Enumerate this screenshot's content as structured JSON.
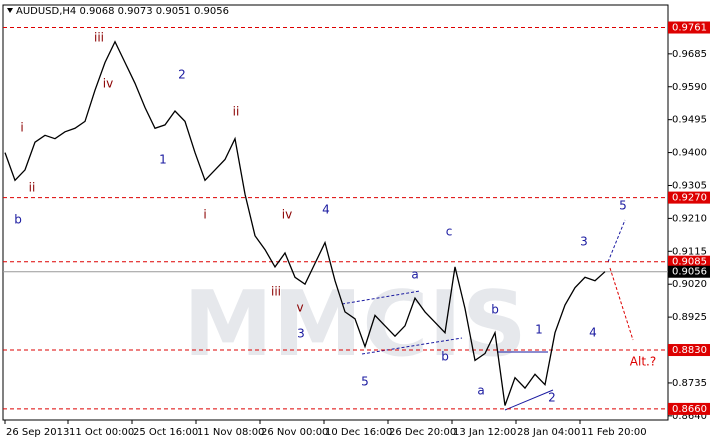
{
  "chart_data": {
    "type": "line",
    "title": "AUDUSD,H4  0.9068 0.9073 0.9051 0.9056",
    "watermark": "MMCIS",
    "series": [
      {
        "name": "AUDUSD",
        "color": "#000000",
        "values": [
          0.94,
          0.932,
          0.935,
          0.943,
          0.945,
          0.944,
          0.946,
          0.947,
          0.949,
          0.958,
          0.966,
          0.972,
          0.966,
          0.96,
          0.953,
          0.947,
          0.948,
          0.952,
          0.949,
          0.94,
          0.932,
          0.935,
          0.938,
          0.944,
          0.928,
          0.916,
          0.912,
          0.907,
          0.911,
          0.904,
          0.902,
          0.908,
          0.914,
          0.903,
          0.894,
          0.892,
          0.884,
          0.893,
          0.89,
          0.887,
          0.89,
          0.898,
          0.894,
          0.891,
          0.888,
          0.907,
          0.895,
          0.88,
          0.882,
          0.888,
          0.867,
          0.875,
          0.872,
          0.876,
          0.873,
          0.888,
          0.896,
          0.901,
          0.904,
          0.903,
          0.9056
        ]
      }
    ],
    "xlim": [
      -0.2,
      66.3
    ],
    "xticks": [
      {
        "value": 0,
        "label": "26 Sep 2013"
      },
      {
        "value": 6.3,
        "label": "11 Oct 00:00"
      },
      {
        "value": 12.7,
        "label": "25 Oct 16:00"
      },
      {
        "value": 19.1,
        "label": "11 Nov 08:00"
      },
      {
        "value": 25.5,
        "label": "26 Nov 00:00"
      },
      {
        "value": 31.9,
        "label": "10 Dec 16:00"
      },
      {
        "value": 38.3,
        "label": "26 Dec 20:00"
      },
      {
        "value": 44.7,
        "label": "13 Jan 12:00"
      },
      {
        "value": 51.1,
        "label": "28 Jan 04:00"
      },
      {
        "value": 57.5,
        "label": "11 Feb 20:00"
      }
    ],
    "ylim": [
      0.8628,
      0.9826
    ],
    "yticks": [
      0.9685,
      {
        "value": 0.959,
        "label": "0.9590"
      },
      0.9495,
      {
        "value": 0.94,
        "label": "0.9400"
      },
      0.9305,
      {
        "value": 0.921,
        "label": "0.9210"
      },
      0.9115,
      {
        "value": 0.902,
        "label": "0.9020"
      },
      0.8925,
      0.8735,
      {
        "value": 0.864,
        "label": "0.8640"
      }
    ],
    "levels": [
      {
        "value": 0.9761,
        "label": "0.9761"
      },
      {
        "value": 0.927,
        "label": "0.9270"
      },
      {
        "value": 0.9085,
        "label": "0.9085"
      },
      {
        "value": 0.883,
        "label": "0.8830"
      },
      {
        "value": 0.866,
        "label": "0.8660"
      }
    ],
    "level_color": "#dd0000",
    "current_price": {
      "value": 0.9056,
      "label": "0.9056"
    },
    "annotations": [
      {
        "text": "b",
        "color": "#1a1aa0"
      },
      {
        "text": "i",
        "color": "#8b0000"
      },
      {
        "text": "ii",
        "color": "#8b0000"
      },
      {
        "text": "iii",
        "color": "#8b0000"
      },
      {
        "text": "iv",
        "color": "#8b0000"
      },
      {
        "text": "2",
        "color": "#1a1aa0"
      },
      {
        "text": "1",
        "color": "#1a1aa0"
      },
      {
        "text": "ii",
        "color": "#8b0000"
      },
      {
        "text": "i",
        "color": "#8b0000"
      },
      {
        "text": "iv",
        "color": "#8b0000"
      },
      {
        "text": "4",
        "color": "#1a1aa0"
      },
      {
        "text": "iii",
        "color": "#8b0000"
      },
      {
        "text": "v",
        "color": "#8b0000"
      },
      {
        "text": "3",
        "color": "#1a1aa0"
      },
      {
        "text": "5",
        "color": "#1a1aa0"
      },
      {
        "text": "a",
        "color": "#1a1aa0"
      },
      {
        "text": "b",
        "color": "#1a1aa0"
      },
      {
        "text": "c",
        "color": "#1a1aa0"
      },
      {
        "text": "b",
        "color": "#1a1aa0"
      },
      {
        "text": "a",
        "color": "#1a1aa0"
      },
      {
        "text": "1",
        "color": "#1a1aa0"
      },
      {
        "text": "2",
        "color": "#1a1aa0"
      },
      {
        "text": "3",
        "color": "#1a1aa0"
      },
      {
        "text": "4",
        "color": "#1a1aa0"
      },
      {
        "text": "5",
        "color": "#1a1aa0"
      },
      {
        "text": "Alt.?",
        "color": "#dd0000"
      }
    ]
  }
}
